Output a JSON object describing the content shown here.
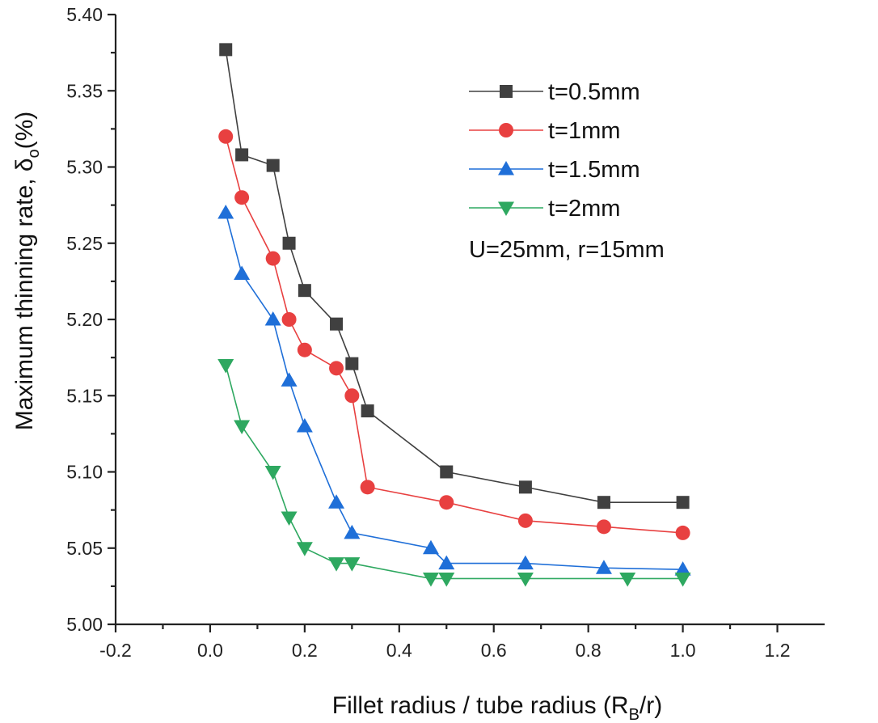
{
  "chart_data": {
    "type": "line",
    "xlabel": "Fillet radius / tube radius (R",
    "xlabel_sub": "B",
    "xlabel_end": "/r)",
    "ylabel": "Maximum thinning rate, δ",
    "ylabel_sub": "o",
    "ylabel_end": "(%)",
    "xlim": [
      -0.2,
      1.3
    ],
    "ylim": [
      5.0,
      5.4
    ],
    "x_ticks": [
      "-0.2",
      "0.0",
      "0.2",
      "0.4",
      "0.6",
      "0.8",
      "1.0",
      "1.2"
    ],
    "x_tick_values": [
      -0.2,
      0.0,
      0.2,
      0.4,
      0.6,
      0.8,
      1.0,
      1.2
    ],
    "y_ticks": [
      "5.00",
      "5.05",
      "5.10",
      "5.15",
      "5.20",
      "5.25",
      "5.30",
      "5.35",
      "5.40"
    ],
    "y_tick_values": [
      5.0,
      5.05,
      5.1,
      5.15,
      5.2,
      5.25,
      5.3,
      5.35,
      5.4
    ],
    "grid": false,
    "legend_position": "top-right",
    "annotation": "U=25mm, r=15mm",
    "series": [
      {
        "name": "t=0.5mm",
        "color": "#404040",
        "marker": "square",
        "x": [
          0.033,
          0.067,
          0.133,
          0.167,
          0.2,
          0.267,
          0.3,
          0.333,
          0.5,
          0.667,
          0.833,
          1.0
        ],
        "y": [
          5.377,
          5.308,
          5.301,
          5.25,
          5.219,
          5.197,
          5.171,
          5.14,
          5.1,
          5.09,
          5.08,
          5.08
        ]
      },
      {
        "name": "t=1mm",
        "color": "#e84040",
        "marker": "circle",
        "x": [
          0.033,
          0.067,
          0.133,
          0.167,
          0.2,
          0.267,
          0.3,
          0.333,
          0.5,
          0.667,
          0.833,
          1.0
        ],
        "y": [
          5.32,
          5.28,
          5.24,
          5.2,
          5.18,
          5.168,
          5.15,
          5.09,
          5.08,
          5.068,
          5.064,
          5.06
        ]
      },
      {
        "name": "t=1.5mm",
        "color": "#1f6fd8",
        "marker": "triangle-up",
        "x": [
          0.033,
          0.067,
          0.133,
          0.167,
          0.2,
          0.267,
          0.3,
          0.467,
          0.5,
          0.667,
          0.833,
          1.0
        ],
        "y": [
          5.27,
          5.23,
          5.2,
          5.16,
          5.13,
          5.08,
          5.06,
          5.05,
          5.04,
          5.04,
          5.037,
          5.036
        ]
      },
      {
        "name": "t=2mm",
        "color": "#2ea860",
        "marker": "triangle-down",
        "x": [
          0.033,
          0.067,
          0.133,
          0.167,
          0.2,
          0.267,
          0.3,
          0.467,
          0.5,
          0.667,
          0.883,
          1.0
        ],
        "y": [
          5.17,
          5.13,
          5.1,
          5.07,
          5.05,
          5.04,
          5.04,
          5.03,
          5.03,
          5.03,
          5.03,
          5.03
        ]
      }
    ]
  }
}
